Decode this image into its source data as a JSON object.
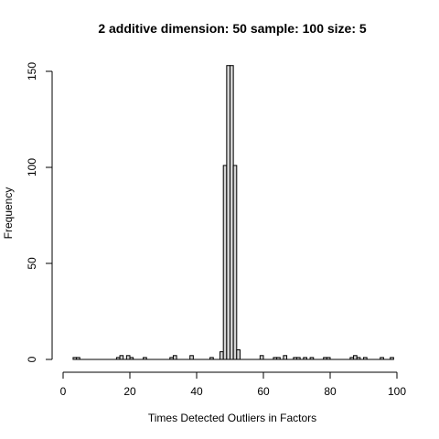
{
  "chart_data": {
    "type": "bar",
    "title": "2 additive dimension: 50 sample: 100 size: 5",
    "xlabel": "Times Detected Outliers in Factors",
    "ylabel": "Frequency",
    "xlim": [
      0,
      100
    ],
    "ylim": [
      0,
      150
    ],
    "x_ticks": [
      0,
      20,
      40,
      60,
      80,
      100
    ],
    "y_ticks": [
      0,
      50,
      100,
      150
    ],
    "bin_width": 1,
    "bins_start": [
      3,
      4,
      16,
      17,
      19,
      20,
      24,
      32,
      33,
      38,
      44,
      47,
      48,
      49,
      50,
      51,
      52,
      59,
      63,
      64,
      66,
      69,
      70,
      72,
      74,
      78,
      79,
      86,
      87,
      88,
      90,
      95,
      98
    ],
    "values": [
      1,
      1,
      1,
      2,
      2,
      1,
      1,
      1,
      2,
      2,
      1,
      4,
      101,
      153,
      153,
      101,
      5,
      2,
      1,
      1,
      2,
      1,
      1,
      1,
      1,
      1,
      1,
      1,
      2,
      1,
      1,
      1,
      1
    ],
    "grid": false,
    "legend": "none"
  }
}
